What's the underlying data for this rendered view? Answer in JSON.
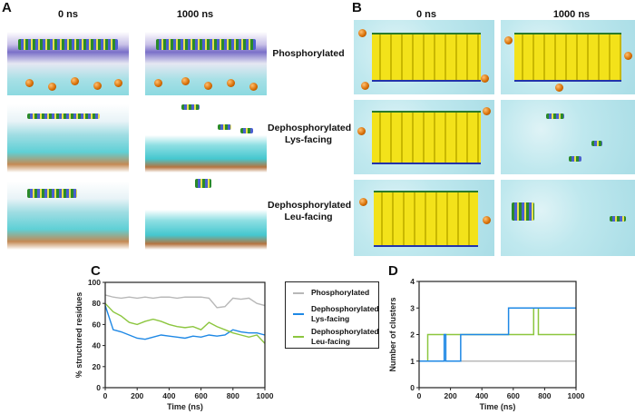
{
  "panel_labels": {
    "A": "A",
    "B": "B",
    "C": "C",
    "D": "D"
  },
  "panelA": {
    "col_headers": [
      "0 ns",
      "1000 ns"
    ]
  },
  "panelB": {
    "col_headers": [
      "0 ns",
      "1000 ns"
    ]
  },
  "row_labels": [
    {
      "line1": "Phosphorylated",
      "line2": ""
    },
    {
      "line1": "Dephosphorylated",
      "line2": "Lys-facing"
    },
    {
      "line1": "Dephosphorylated",
      "line2": "Leu-facing"
    }
  ],
  "chart_data": [
    {
      "panel": "C",
      "type": "line",
      "xlabel": "Time (ns)",
      "ylabel": "% structured residues",
      "xlim": [
        0,
        1000
      ],
      "ylim": [
        0,
        100
      ],
      "xticks": [
        0,
        200,
        400,
        600,
        800,
        1000
      ],
      "yticks": [
        0,
        20,
        40,
        60,
        80,
        100
      ],
      "grid": false,
      "legend": "right",
      "x": [
        0,
        50,
        100,
        150,
        200,
        250,
        300,
        350,
        400,
        450,
        500,
        550,
        600,
        650,
        700,
        750,
        800,
        850,
        900,
        950,
        1000
      ],
      "series": [
        {
          "name": "Phosphorylated",
          "color": "#b8b8b8",
          "values": [
            88,
            86,
            85,
            86,
            85,
            86,
            85,
            86,
            86,
            85,
            86,
            86,
            86,
            85,
            76,
            77,
            85,
            84,
            85,
            80,
            78
          ]
        },
        {
          "name": "Dephosphorylated Lys-facing",
          "name_lines": [
            "Dephosphorylated",
            "Lys-facing"
          ],
          "color": "#1e88e5",
          "values": [
            78,
            55,
            53,
            50,
            47,
            46,
            48,
            50,
            49,
            48,
            47,
            49,
            48,
            50,
            49,
            50,
            55,
            53,
            52,
            52,
            50
          ]
        },
        {
          "name": "Dephosphorylated Leu-facing",
          "name_lines": [
            "Dephosphorylated",
            "Leu-facing"
          ],
          "color": "#8cc63f",
          "values": [
            80,
            72,
            68,
            62,
            60,
            63,
            65,
            63,
            60,
            58,
            57,
            58,
            55,
            62,
            58,
            55,
            52,
            50,
            48,
            50,
            42
          ]
        }
      ]
    },
    {
      "panel": "D",
      "type": "line",
      "step": true,
      "xlabel": "Time (ns)",
      "ylabel": "Number of clusters",
      "xlim": [
        0,
        1000
      ],
      "ylim": [
        0,
        4
      ],
      "xticks": [
        0,
        200,
        400,
        600,
        800,
        1000
      ],
      "yticks": [
        0,
        1,
        2,
        3,
        4
      ],
      "grid": false,
      "series": [
        {
          "name": "Phosphorylated",
          "color": "#b8b8b8",
          "x": [
            0,
            1000
          ],
          "values": [
            1,
            1
          ]
        },
        {
          "name": "Dephosphorylated Leu-facing",
          "color": "#8cc63f",
          "x": [
            0,
            55,
            730,
            760,
            1000
          ],
          "values": [
            1,
            2,
            3,
            2,
            2
          ]
        },
        {
          "name": "Dephosphorylated Lys-facing",
          "color": "#1e88e5",
          "x": [
            0,
            160,
            170,
            265,
            570,
            580,
            1000
          ],
          "values": [
            1,
            2,
            1,
            2,
            3,
            3,
            3
          ]
        }
      ]
    }
  ]
}
